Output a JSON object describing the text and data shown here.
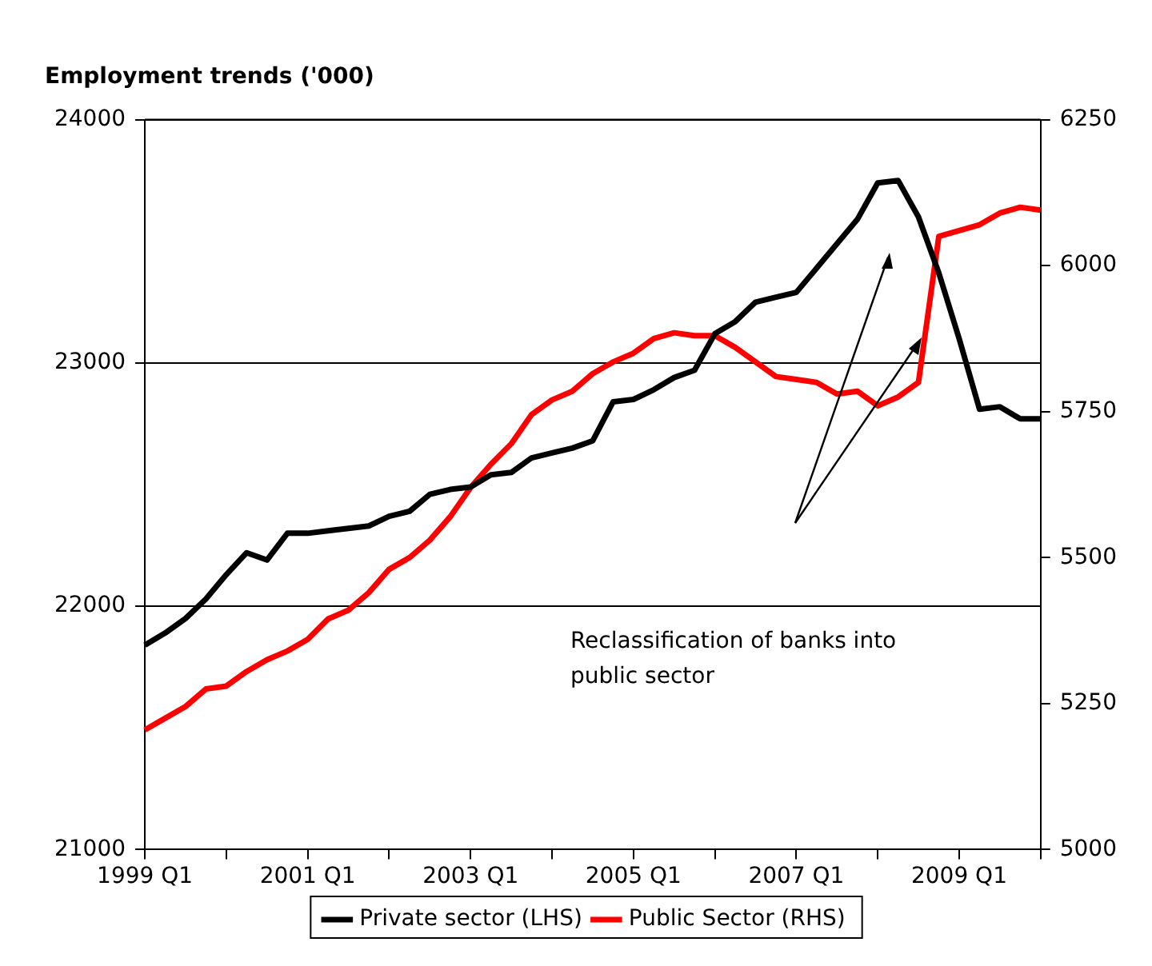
{
  "chart_data": {
    "type": "line",
    "title": "Employment trends ('000)",
    "categories": [
      "1999 Q1",
      null,
      null,
      null,
      null,
      null,
      null,
      null,
      "2001 Q1",
      null,
      null,
      null,
      null,
      null,
      null,
      null,
      "2003 Q1",
      null,
      null,
      null,
      null,
      null,
      null,
      null,
      "2005 Q1",
      null,
      null,
      null,
      null,
      null,
      null,
      null,
      "2007 Q1",
      null,
      null,
      null,
      null,
      null,
      null,
      null,
      "2009 Q1",
      null,
      null,
      null,
      null
    ],
    "series": [
      {
        "name": "Private sector (LHS)",
        "color": "#000000",
        "values": [
          21840,
          21890,
          21950,
          22030,
          22130,
          22220,
          22190,
          22300,
          22300,
          22310,
          22320,
          22330,
          22370,
          22390,
          22460,
          22480,
          22490,
          22540,
          22550,
          22610,
          22630,
          22650,
          22680,
          22840,
          22850,
          22890,
          22940,
          22970,
          23120,
          23170,
          23250,
          23270,
          23290,
          23390,
          23490,
          23590,
          23740,
          23750,
          23600,
          23370,
          23100,
          22810,
          22820,
          22770,
          22770
        ]
      },
      {
        "name": "Public Sector (RHS)",
        "color": "#ff0000",
        "axis": "y2",
        "values": [
          5205,
          5225,
          5245,
          5275,
          5280,
          5305,
          5325,
          5340,
          5360,
          5395,
          5410,
          5440,
          5480,
          5500,
          5530,
          5570,
          5620,
          5660,
          5695,
          5745,
          5770,
          5785,
          5815,
          5835,
          5850,
          5875,
          5885,
          5880,
          5880,
          5860,
          5835,
          5810,
          5805,
          5800,
          5780,
          5785,
          5760,
          5775,
          5800,
          6050,
          6060,
          6070,
          6090,
          6100,
          6095
        ]
      }
    ],
    "ylim": [
      21000,
      24000
    ],
    "yticks": [
      21000,
      22000,
      23000,
      24000
    ],
    "y2lim": [
      5000,
      6250
    ],
    "y2ticks": [
      5000,
      5250,
      5500,
      5750,
      6000,
      6250
    ],
    "grid": "y",
    "legend": "bottom",
    "marker": "none",
    "line_style": "solid",
    "annotations": [
      "Reclassification of banks into public sector"
    ]
  }
}
